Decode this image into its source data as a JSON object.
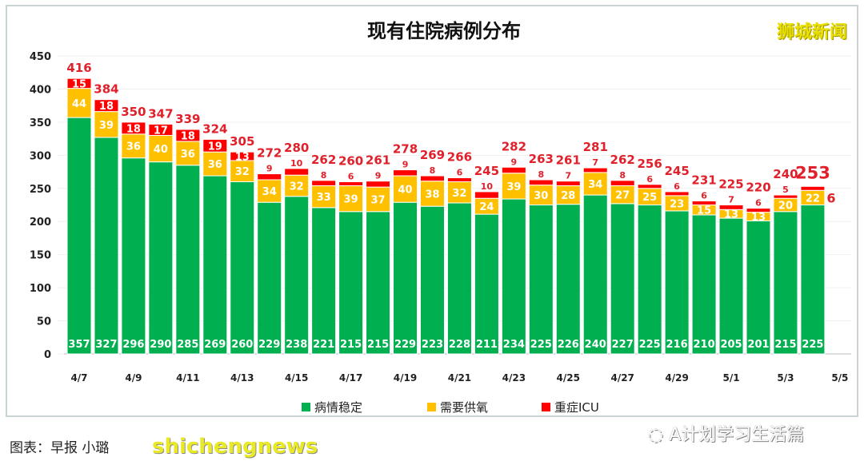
{
  "logo_text": "狮城新闻",
  "caption": "图表：早报 小璐",
  "watermark_bottom_left": "shichengnews",
  "watermark_bottom_right": "A计划学习生活篇",
  "colors": {
    "stable": "#00b050",
    "oxygen": "#ffc000",
    "icu": "#ff0000",
    "total_label": "#e0202a"
  },
  "chart_data": {
    "type": "bar",
    "stacked": true,
    "title": "现有住院病例分布",
    "xlabel": "",
    "ylabel": "",
    "ylim": [
      0,
      450
    ],
    "yticks": [
      0,
      50,
      100,
      150,
      200,
      250,
      300,
      350,
      400,
      450
    ],
    "categories": [
      "4/7",
      "4/8",
      "4/9",
      "4/10",
      "4/11",
      "4/12",
      "4/13",
      "4/14",
      "4/15",
      "4/16",
      "4/17",
      "4/18",
      "4/19",
      "4/20",
      "4/21",
      "4/22",
      "4/23",
      "4/24",
      "4/25",
      "4/26",
      "4/27",
      "4/28",
      "4/29",
      "4/30",
      "5/1",
      "5/2",
      "5/3",
      "5/4",
      "5/5"
    ],
    "xtick_labels": [
      "4/7",
      "4/9",
      "4/11",
      "4/13",
      "4/15",
      "4/17",
      "4/19",
      "4/21",
      "4/23",
      "4/25",
      "4/27",
      "4/29",
      "5/1",
      "5/3",
      "5/5"
    ],
    "series": [
      {
        "name": "病情稳定",
        "values": [
          357,
          327,
          296,
          290,
          285,
          269,
          260,
          229,
          238,
          221,
          215,
          215,
          229,
          223,
          228,
          211,
          234,
          225,
          226,
          240,
          227,
          225,
          216,
          210,
          205,
          201,
          215,
          225,
          null
        ]
      },
      {
        "name": "需要供氧",
        "values": [
          44,
          39,
          36,
          40,
          36,
          36,
          32,
          34,
          32,
          33,
          39,
          37,
          40,
          38,
          32,
          24,
          39,
          30,
          28,
          34,
          27,
          25,
          23,
          15,
          13,
          13,
          20,
          22,
          null
        ]
      },
      {
        "name": "重症ICU",
        "values": [
          15,
          18,
          18,
          17,
          18,
          19,
          13,
          9,
          10,
          8,
          6,
          9,
          9,
          8,
          6,
          10,
          9,
          8,
          7,
          7,
          8,
          6,
          6,
          6,
          7,
          6,
          5,
          6,
          null
        ]
      }
    ],
    "totals": [
      416,
      384,
      350,
      347,
      339,
      324,
      305,
      272,
      280,
      262,
      260,
      261,
      278,
      269,
      266,
      245,
      282,
      263,
      261,
      281,
      262,
      256,
      245,
      231,
      225,
      220,
      240,
      253,
      null
    ],
    "legend_position": "bottom",
    "grid": true
  }
}
